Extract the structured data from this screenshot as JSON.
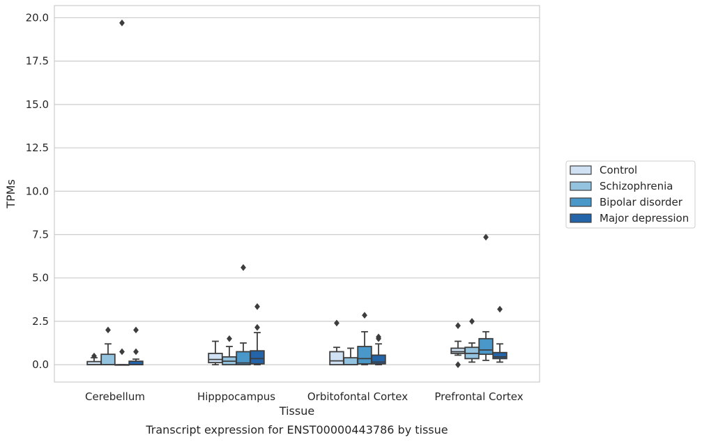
{
  "chart_data": {
    "type": "box",
    "title": "Transcript expression for ENST00000443786 by tissue",
    "xlabel": "Tissue",
    "ylabel": "TPMs",
    "ylim": [
      -1,
      20.7
    ],
    "yticks": [
      "0.0",
      "2.5",
      "5.0",
      "7.5",
      "10.0",
      "12.5",
      "15.0",
      "17.5",
      "20.0"
    ],
    "grid": "horizontal",
    "legend_position": "right",
    "categories": [
      "Cerebellum",
      "Hipppocampus",
      "Orbitofontal Cortex",
      "Prefrontal Cortex"
    ],
    "series": [
      {
        "name": "Control",
        "color": "#cfe1f2",
        "boxes": [
          {
            "whislo": 0,
            "q1": 0,
            "med": 0,
            "q3": 0.18,
            "whishi": 0.4,
            "fliers": [
              0.5
            ]
          },
          {
            "whislo": 0,
            "q1": 0.12,
            "med": 0.3,
            "q3": 0.65,
            "whishi": 1.35,
            "fliers": []
          },
          {
            "whislo": 0,
            "q1": 0,
            "med": 0.22,
            "q3": 0.75,
            "whishi": 1.0,
            "fliers": [
              2.4
            ]
          },
          {
            "whislo": 0.55,
            "q1": 0.65,
            "med": 0.75,
            "q3": 0.95,
            "whishi": 1.35,
            "fliers": [
              2.25,
              0
            ]
          }
        ]
      },
      {
        "name": "Schizophrenia",
        "color": "#93c3df",
        "boxes": [
          {
            "whislo": 0,
            "q1": 0,
            "med": 0,
            "q3": 0.6,
            "whishi": 1.2,
            "fliers": [
              2.0
            ]
          },
          {
            "whislo": 0,
            "q1": 0,
            "med": 0.2,
            "q3": 0.45,
            "whishi": 1.05,
            "fliers": [
              1.5
            ]
          },
          {
            "whislo": 0,
            "q1": 0,
            "med": 0,
            "q3": 0.4,
            "whishi": 0.95,
            "fliers": []
          },
          {
            "whislo": 0.15,
            "q1": 0.35,
            "med": 0.65,
            "q3": 1.0,
            "whishi": 1.25,
            "fliers": [
              2.5
            ]
          }
        ]
      },
      {
        "name": "Bipolar disorder",
        "color": "#4a98c9",
        "boxes": [
          {
            "whislo": 0,
            "q1": 0,
            "med": 0,
            "q3": 0,
            "whishi": 0,
            "fliers": [
              19.7,
              0.75
            ]
          },
          {
            "whislo": 0,
            "q1": 0,
            "med": 0.1,
            "q3": 0.75,
            "whishi": 1.25,
            "fliers": [
              5.6
            ]
          },
          {
            "whislo": 0,
            "q1": 0.05,
            "med": 0.35,
            "q3": 1.05,
            "whishi": 1.9,
            "fliers": [
              2.85
            ]
          },
          {
            "whislo": 0.25,
            "q1": 0.6,
            "med": 0.85,
            "q3": 1.5,
            "whishi": 1.9,
            "fliers": [
              7.35
            ]
          }
        ]
      },
      {
        "name": "Major depression",
        "color": "#2464a8",
        "boxes": [
          {
            "whislo": 0,
            "q1": 0,
            "med": 0,
            "q3": 0.2,
            "whishi": 0.32,
            "fliers": [
              2.0,
              0.75
            ]
          },
          {
            "whislo": 0,
            "q1": 0.05,
            "med": 0.35,
            "q3": 0.8,
            "whishi": 1.85,
            "fliers": [
              3.35,
              2.15
            ]
          },
          {
            "whislo": 0,
            "q1": 0.05,
            "med": 0.15,
            "q3": 0.55,
            "whishi": 1.2,
            "fliers": [
              1.6,
              1.5
            ]
          },
          {
            "whislo": 0.15,
            "q1": 0.35,
            "med": 0.45,
            "q3": 0.7,
            "whishi": 1.2,
            "fliers": [
              3.2
            ]
          }
        ]
      }
    ]
  }
}
